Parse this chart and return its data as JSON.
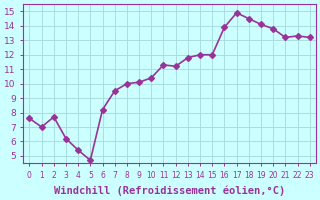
{
  "x": [
    0,
    1,
    2,
    3,
    4,
    5,
    6,
    7,
    8,
    9,
    10,
    11,
    12,
    13,
    14,
    15,
    16,
    17,
    18,
    19,
    20,
    21,
    22,
    23
  ],
  "y": [
    7.6,
    7.0,
    7.7,
    6.2,
    5.4,
    4.7,
    8.2,
    9.5,
    10.0,
    10.1,
    10.4,
    11.3,
    11.2,
    11.8,
    12.0,
    12.0,
    13.9,
    14.9,
    14.5,
    14.1,
    13.8,
    13.2,
    13.3,
    13.2
  ],
  "line_color": "#993399",
  "marker": "D",
  "markersize": 3,
  "linewidth": 1.2,
  "xlabel": "Windchill (Refroidissement éolien,°C)",
  "xlabel_fontsize": 7.5,
  "ylabel_ticks": [
    5,
    6,
    7,
    8,
    9,
    10,
    11,
    12,
    13,
    14,
    15
  ],
  "ylim": [
    4.5,
    15.5
  ],
  "xlim": [
    -0.5,
    23.5
  ],
  "xtick_labels": [
    "0",
    "1",
    "2",
    "3",
    "4",
    "5",
    "6",
    "7",
    "8",
    "9",
    "10",
    "11",
    "12",
    "13",
    "14",
    "15",
    "16",
    "17",
    "18",
    "19",
    "20",
    "21",
    "22",
    "23"
  ],
  "background_color": "#ccffff",
  "grid_color": "#aadddd",
  "tick_color": "#993399",
  "label_color": "#993399"
}
